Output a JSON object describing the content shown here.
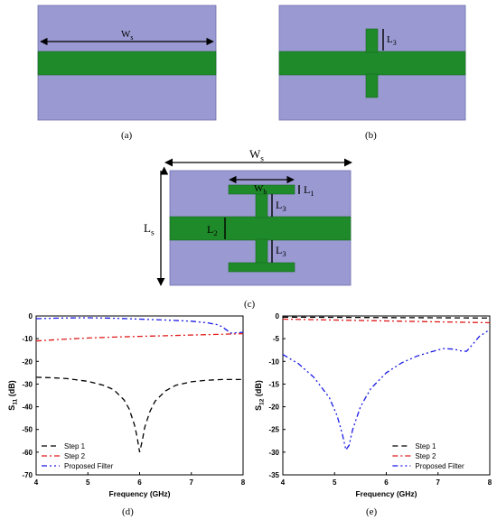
{
  "colors": {
    "substrate": "#9a99d2",
    "substrate_edge": "#6f6eb0",
    "metal": "#1f8a2a",
    "metal_edge": "#156b1e",
    "step1": "#000000",
    "step2": "#e01b1b",
    "proposed": "#1a1ae6"
  },
  "panels": {
    "a": {
      "caption": "(a)",
      "width_label": "Ws"
    },
    "b": {
      "caption": "(b)",
      "stub_label": "L3"
    },
    "c": {
      "caption": "(c)",
      "ws_label": "Ws",
      "ls_label": "Ls",
      "wb_label": "Wb",
      "l1_label": "L1",
      "l2_label": "L2",
      "l3_top_label": "L3",
      "l3_bottom_label": "L3"
    },
    "d": {
      "caption": "(d)"
    },
    "e": {
      "caption": "(e)"
    }
  },
  "chart_data": [
    {
      "type": "line",
      "id": "d",
      "xlabel": "Frequency (GHz)",
      "ylabel": "S11 (dB)",
      "xlim": [
        4,
        8
      ],
      "ylim": [
        -70,
        0
      ],
      "xticks": [
        4,
        5,
        6,
        7,
        8
      ],
      "yticks": [
        0,
        -10,
        -20,
        -30,
        -40,
        -50,
        -60,
        -70
      ],
      "legend_position": "bottom-left",
      "series": [
        {
          "name": "Step 1",
          "style": "dash",
          "color": "#000000",
          "x": [
            4.0,
            4.3,
            4.6,
            5.0,
            5.3,
            5.5,
            5.7,
            5.8,
            5.9,
            5.95,
            6.0,
            6.05,
            6.1,
            6.2,
            6.3,
            6.5,
            6.7,
            7.0,
            7.3,
            7.6,
            8.0
          ],
          "y": [
            -27,
            -27.2,
            -27.6,
            -28.8,
            -30.5,
            -32.5,
            -37,
            -41,
            -48,
            -53,
            -60,
            -55,
            -49,
            -42,
            -37.5,
            -33,
            -30.5,
            -29,
            -28.3,
            -28,
            -28
          ]
        },
        {
          "name": "Step 2",
          "style": "dashdot",
          "color": "#e01b1b",
          "x": [
            4.0,
            4.5,
            5.0,
            5.5,
            6.0,
            6.5,
            7.0,
            7.5,
            8.0
          ],
          "y": [
            -11,
            -10.3,
            -9.7,
            -9.3,
            -9.0,
            -8.7,
            -8.4,
            -8.1,
            -7.8
          ]
        },
        {
          "name": "Proposed Filter",
          "style": "dashdotdot",
          "color": "#1a1ae6",
          "x": [
            4.0,
            4.5,
            5.0,
            5.5,
            6.0,
            6.5,
            7.0,
            7.3,
            7.5,
            7.6,
            7.7,
            7.75,
            7.85,
            8.0
          ],
          "y": [
            -1.2,
            -0.9,
            -0.8,
            -1.0,
            -1.4,
            -1.8,
            -2.3,
            -3.0,
            -3.8,
            -4.8,
            -6.5,
            -7.5,
            -7.4,
            -7.2
          ]
        }
      ]
    },
    {
      "type": "line",
      "id": "e",
      "xlabel": "Frequency (GHz)",
      "ylabel": "S12 (dB)",
      "xlim": [
        4,
        8
      ],
      "ylim": [
        -35,
        0
      ],
      "xticks": [
        4,
        5,
        6,
        7,
        8
      ],
      "yticks": [
        0,
        -5,
        -10,
        -15,
        -20,
        -25,
        -30,
        -35
      ],
      "legend_position": "bottom-right",
      "series": [
        {
          "name": "Step 1",
          "style": "dash",
          "color": "#000000",
          "x": [
            4.0,
            5.0,
            6.0,
            7.0,
            8.0
          ],
          "y": [
            -0.25,
            -0.3,
            -0.35,
            -0.4,
            -0.45
          ]
        },
        {
          "name": "Step 2",
          "style": "dashdot",
          "color": "#e01b1b",
          "x": [
            4.0,
            5.0,
            6.0,
            7.0,
            8.0
          ],
          "y": [
            -0.7,
            -0.9,
            -1.1,
            -1.3,
            -1.5
          ]
        },
        {
          "name": "Proposed Filter",
          "style": "dashdotdot",
          "color": "#1a1ae6",
          "x": [
            4.0,
            4.3,
            4.6,
            4.9,
            5.05,
            5.15,
            5.22,
            5.28,
            5.35,
            5.5,
            5.7,
            6.0,
            6.3,
            6.6,
            6.9,
            7.1,
            7.3,
            7.45,
            7.55,
            7.65,
            7.8,
            8.0
          ],
          "y": [
            -8.5,
            -10.5,
            -13.5,
            -18,
            -22,
            -26,
            -29.5,
            -28.5,
            -25,
            -20,
            -16,
            -12.5,
            -10.3,
            -8.8,
            -7.8,
            -7.2,
            -7.3,
            -7.7,
            -7.8,
            -6.5,
            -4.5,
            -3.0
          ]
        }
      ]
    }
  ]
}
